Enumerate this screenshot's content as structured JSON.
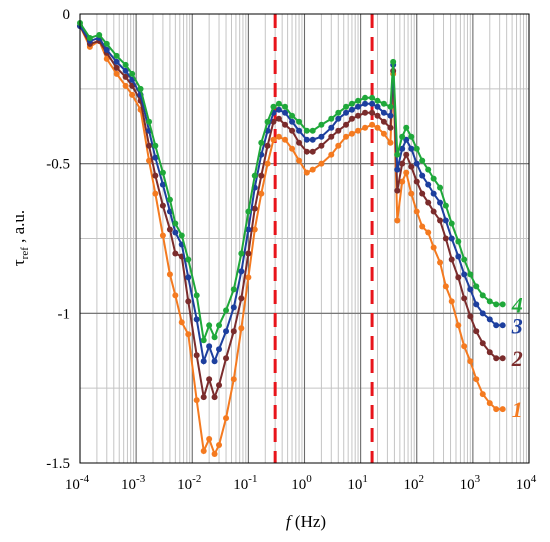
{
  "chart_data": {
    "type": "line",
    "xscale": "log",
    "xlim": [
      0.0001,
      10000
    ],
    "ylim": [
      -1.5,
      0
    ],
    "xlabel": "f (Hz)",
    "xlabel_italic": "f",
    "xlabel_rest": " (Hz)",
    "ylabel": "τref , a.u.",
    "ylabel_symbol": "τ",
    "ylabel_sub": "ref",
    "ylabel_rest": " , a.u.",
    "grid": true,
    "x_ticks": [
      {
        "value": 0.0001,
        "base": "10",
        "exp": "-4"
      },
      {
        "value": 0.001,
        "base": "10",
        "exp": "-3"
      },
      {
        "value": 0.01,
        "base": "10",
        "exp": "-2"
      },
      {
        "value": 0.1,
        "base": "10",
        "exp": "-1"
      },
      {
        "value": 1,
        "base": "10",
        "exp": "0"
      },
      {
        "value": 10,
        "base": "10",
        "exp": "1"
      },
      {
        "value": 100,
        "base": "10",
        "exp": "2"
      },
      {
        "value": 1000,
        "base": "10",
        "exp": "3"
      },
      {
        "value": 10000,
        "base": "10",
        "exp": "4"
      }
    ],
    "y_ticks": [
      {
        "value": 0,
        "label": "0"
      },
      {
        "value": -0.5,
        "label": "-0.5"
      },
      {
        "value": -1,
        "label": "-1"
      },
      {
        "value": -1.5,
        "label": "-1.5"
      }
    ],
    "reference_lines": [
      {
        "x": 0.3,
        "color": "#e8141b",
        "style": "dashed"
      },
      {
        "x": 16,
        "color": "#e8141b",
        "style": "dashed"
      }
    ],
    "series": [
      {
        "name": "1",
        "color": "#f47a20",
        "points": [
          [
            0.0001,
            -0.04
          ],
          [
            0.00015,
            -0.11
          ],
          [
            0.00022,
            -0.09
          ],
          [
            0.0003,
            -0.15
          ],
          [
            0.00045,
            -0.2
          ],
          [
            0.00065,
            -0.24
          ],
          [
            0.00085,
            -0.27
          ],
          [
            0.0012,
            -0.32
          ],
          [
            0.0017,
            -0.49
          ],
          [
            0.0022,
            -0.6
          ],
          [
            0.003,
            -0.74
          ],
          [
            0.004,
            -0.87
          ],
          [
            0.005,
            -0.94
          ],
          [
            0.0065,
            -1.03
          ],
          [
            0.0085,
            -1.07
          ],
          [
            0.012,
            -1.29
          ],
          [
            0.016,
            -1.46
          ],
          [
            0.02,
            -1.42
          ],
          [
            0.025,
            -1.47
          ],
          [
            0.03,
            -1.44
          ],
          [
            0.04,
            -1.35
          ],
          [
            0.055,
            -1.22
          ],
          [
            0.075,
            -1.05
          ],
          [
            0.1,
            -0.88
          ],
          [
            0.13,
            -0.72
          ],
          [
            0.17,
            -0.6
          ],
          [
            0.22,
            -0.5
          ],
          [
            0.28,
            -0.42
          ],
          [
            0.35,
            -0.41
          ],
          [
            0.45,
            -0.42
          ],
          [
            0.6,
            -0.45
          ],
          [
            0.8,
            -0.49
          ],
          [
            1.1,
            -0.53
          ],
          [
            1.4,
            -0.52
          ],
          [
            2,
            -0.5
          ],
          [
            3,
            -0.47
          ],
          [
            4,
            -0.44
          ],
          [
            5.5,
            -0.41
          ],
          [
            7,
            -0.4
          ],
          [
            9,
            -0.39
          ],
          [
            12,
            -0.38
          ],
          [
            16,
            -0.37
          ],
          [
            20,
            -0.38
          ],
          [
            26,
            -0.4
          ],
          [
            34,
            -0.43
          ],
          [
            38,
            -0.2
          ],
          [
            45,
            -0.69
          ],
          [
            55,
            -0.56
          ],
          [
            65,
            -0.53
          ],
          [
            80,
            -0.6
          ],
          [
            100,
            -0.66
          ],
          [
            125,
            -0.71
          ],
          [
            160,
            -0.73
          ],
          [
            200,
            -0.78
          ],
          [
            260,
            -0.83
          ],
          [
            330,
            -0.91
          ],
          [
            420,
            -0.96
          ],
          [
            550,
            -1.04
          ],
          [
            700,
            -1.11
          ],
          [
            900,
            -1.16
          ],
          [
            1150,
            -1.22
          ],
          [
            1500,
            -1.27
          ],
          [
            2000,
            -1.3
          ],
          [
            2600,
            -1.32
          ],
          [
            3400,
            -1.32
          ]
        ]
      },
      {
        "name": "2",
        "color": "#7b2c2c",
        "points": [
          [
            0.0001,
            -0.04
          ],
          [
            0.00015,
            -0.1
          ],
          [
            0.00022,
            -0.09
          ],
          [
            0.0003,
            -0.13
          ],
          [
            0.00045,
            -0.18
          ],
          [
            0.00065,
            -0.21
          ],
          [
            0.00085,
            -0.24
          ],
          [
            0.0012,
            -0.29
          ],
          [
            0.0017,
            -0.44
          ],
          [
            0.0022,
            -0.54
          ],
          [
            0.003,
            -0.64
          ],
          [
            0.004,
            -0.72
          ],
          [
            0.005,
            -0.8
          ],
          [
            0.0065,
            -0.81
          ],
          [
            0.0085,
            -0.96
          ],
          [
            0.012,
            -1.14
          ],
          [
            0.016,
            -1.28
          ],
          [
            0.02,
            -1.22
          ],
          [
            0.025,
            -1.28
          ],
          [
            0.03,
            -1.24
          ],
          [
            0.04,
            -1.15
          ],
          [
            0.055,
            -1.06
          ],
          [
            0.075,
            -0.95
          ],
          [
            0.1,
            -0.8
          ],
          [
            0.13,
            -0.65
          ],
          [
            0.17,
            -0.54
          ],
          [
            0.22,
            -0.44
          ],
          [
            0.28,
            -0.36
          ],
          [
            0.35,
            -0.35
          ],
          [
            0.45,
            -0.37
          ],
          [
            0.6,
            -0.39
          ],
          [
            0.8,
            -0.43
          ],
          [
            1.1,
            -0.46
          ],
          [
            1.4,
            -0.46
          ],
          [
            2,
            -0.44
          ],
          [
            3,
            -0.41
          ],
          [
            4,
            -0.39
          ],
          [
            5.5,
            -0.37
          ],
          [
            7,
            -0.35
          ],
          [
            9,
            -0.34
          ],
          [
            12,
            -0.33
          ],
          [
            16,
            -0.33
          ],
          [
            20,
            -0.34
          ],
          [
            26,
            -0.36
          ],
          [
            34,
            -0.38
          ],
          [
            38,
            -0.19
          ],
          [
            45,
            -0.59
          ],
          [
            55,
            -0.5
          ],
          [
            65,
            -0.47
          ],
          [
            80,
            -0.51
          ],
          [
            100,
            -0.56
          ],
          [
            125,
            -0.6
          ],
          [
            160,
            -0.63
          ],
          [
            200,
            -0.66
          ],
          [
            260,
            -0.69
          ],
          [
            330,
            -0.75
          ],
          [
            420,
            -0.82
          ],
          [
            550,
            -0.88
          ],
          [
            700,
            -0.95
          ],
          [
            900,
            -1.01
          ],
          [
            1150,
            -1.06
          ],
          [
            1500,
            -1.1
          ],
          [
            2000,
            -1.13
          ],
          [
            2600,
            -1.15
          ],
          [
            3400,
            -1.15
          ]
        ]
      },
      {
        "name": "3",
        "color": "#1d3f9e",
        "points": [
          [
            0.0001,
            -0.04
          ],
          [
            0.00015,
            -0.09
          ],
          [
            0.00022,
            -0.08
          ],
          [
            0.0003,
            -0.12
          ],
          [
            0.00045,
            -0.16
          ],
          [
            0.00065,
            -0.19
          ],
          [
            0.00085,
            -0.22
          ],
          [
            0.0012,
            -0.27
          ],
          [
            0.0017,
            -0.39
          ],
          [
            0.0022,
            -0.48
          ],
          [
            0.003,
            -0.57
          ],
          [
            0.004,
            -0.66
          ],
          [
            0.005,
            -0.73
          ],
          [
            0.0065,
            -0.77
          ],
          [
            0.0085,
            -0.88
          ],
          [
            0.012,
            -1.02
          ],
          [
            0.016,
            -1.16
          ],
          [
            0.02,
            -1.11
          ],
          [
            0.025,
            -1.16
          ],
          [
            0.03,
            -1.12
          ],
          [
            0.04,
            -1.06
          ],
          [
            0.055,
            -0.98
          ],
          [
            0.075,
            -0.86
          ],
          [
            0.1,
            -0.72
          ],
          [
            0.13,
            -0.58
          ],
          [
            0.17,
            -0.47
          ],
          [
            0.22,
            -0.39
          ],
          [
            0.28,
            -0.33
          ],
          [
            0.35,
            -0.32
          ],
          [
            0.45,
            -0.33
          ],
          [
            0.6,
            -0.36
          ],
          [
            0.8,
            -0.39
          ],
          [
            1.1,
            -0.42
          ],
          [
            1.4,
            -0.42
          ],
          [
            2,
            -0.41
          ],
          [
            3,
            -0.38
          ],
          [
            4,
            -0.35
          ],
          [
            5.5,
            -0.33
          ],
          [
            7,
            -0.32
          ],
          [
            9,
            -0.31
          ],
          [
            12,
            -0.3
          ],
          [
            16,
            -0.3
          ],
          [
            20,
            -0.31
          ],
          [
            26,
            -0.33
          ],
          [
            34,
            -0.34
          ],
          [
            38,
            -0.17
          ],
          [
            45,
            -0.52
          ],
          [
            55,
            -0.45
          ],
          [
            65,
            -0.42
          ],
          [
            80,
            -0.45
          ],
          [
            100,
            -0.5
          ],
          [
            125,
            -0.54
          ],
          [
            160,
            -0.57
          ],
          [
            200,
            -0.6
          ],
          [
            260,
            -0.63
          ],
          [
            330,
            -0.69
          ],
          [
            420,
            -0.75
          ],
          [
            550,
            -0.81
          ],
          [
            700,
            -0.87
          ],
          [
            900,
            -0.92
          ],
          [
            1150,
            -0.97
          ],
          [
            1500,
            -1
          ],
          [
            2000,
            -1.02
          ],
          [
            2600,
            -1.04
          ],
          [
            3400,
            -1.04
          ]
        ]
      },
      {
        "name": "4",
        "color": "#1fa83a",
        "points": [
          [
            0.0001,
            -0.03
          ],
          [
            0.00015,
            -0.08
          ],
          [
            0.00022,
            -0.07
          ],
          [
            0.0003,
            -0.1
          ],
          [
            0.00045,
            -0.14
          ],
          [
            0.00065,
            -0.17
          ],
          [
            0.00085,
            -0.2
          ],
          [
            0.0012,
            -0.25
          ],
          [
            0.0017,
            -0.36
          ],
          [
            0.0022,
            -0.44
          ],
          [
            0.003,
            -0.53
          ],
          [
            0.004,
            -0.62
          ],
          [
            0.005,
            -0.7
          ],
          [
            0.0065,
            -0.74
          ],
          [
            0.0085,
            -0.82
          ],
          [
            0.012,
            -0.94
          ],
          [
            0.016,
            -1.09
          ],
          [
            0.02,
            -1.04
          ],
          [
            0.025,
            -1.08
          ],
          [
            0.03,
            -1.04
          ],
          [
            0.04,
            -0.99
          ],
          [
            0.055,
            -0.92
          ],
          [
            0.075,
            -0.8
          ],
          [
            0.1,
            -0.66
          ],
          [
            0.13,
            -0.54
          ],
          [
            0.17,
            -0.43
          ],
          [
            0.22,
            -0.36
          ],
          [
            0.28,
            -0.31
          ],
          [
            0.35,
            -0.3
          ],
          [
            0.45,
            -0.31
          ],
          [
            0.6,
            -0.34
          ],
          [
            0.8,
            -0.36
          ],
          [
            1.1,
            -0.39
          ],
          [
            1.4,
            -0.39
          ],
          [
            2,
            -0.37
          ],
          [
            3,
            -0.35
          ],
          [
            4,
            -0.33
          ],
          [
            5.5,
            -0.31
          ],
          [
            7,
            -0.3
          ],
          [
            9,
            -0.29
          ],
          [
            12,
            -0.28
          ],
          [
            16,
            -0.28
          ],
          [
            20,
            -0.29
          ],
          [
            26,
            -0.3
          ],
          [
            34,
            -0.31
          ],
          [
            38,
            -0.16
          ],
          [
            45,
            -0.47
          ],
          [
            55,
            -0.41
          ],
          [
            65,
            -0.38
          ],
          [
            80,
            -0.41
          ],
          [
            100,
            -0.45
          ],
          [
            125,
            -0.49
          ],
          [
            160,
            -0.52
          ],
          [
            200,
            -0.55
          ],
          [
            260,
            -0.58
          ],
          [
            330,
            -0.64
          ],
          [
            420,
            -0.7
          ],
          [
            550,
            -0.76
          ],
          [
            700,
            -0.82
          ],
          [
            900,
            -0.87
          ],
          [
            1150,
            -0.91
          ],
          [
            1500,
            -0.94
          ],
          [
            2000,
            -0.96
          ],
          [
            2600,
            -0.97
          ],
          [
            3400,
            -0.97
          ]
        ]
      }
    ]
  }
}
